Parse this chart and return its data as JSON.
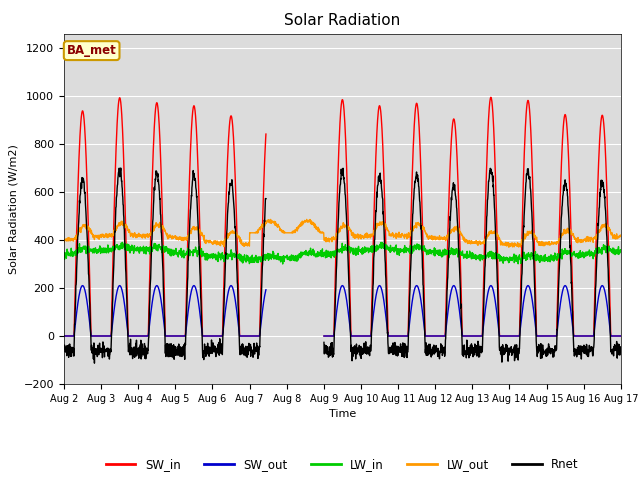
{
  "title": "Solar Radiation",
  "xlabel": "Time",
  "ylabel": "Solar Radiation (W/m2)",
  "ylim": [
    -200,
    1260
  ],
  "yticks": [
    -200,
    0,
    200,
    400,
    600,
    800,
    1000,
    1200
  ],
  "plot_bg_color": "#dcdcdc",
  "figure_color": "#ffffff",
  "annotation_label": "BA_met",
  "legend_entries": [
    "SW_in",
    "SW_out",
    "LW_in",
    "LW_out",
    "Rnet"
  ],
  "colors": {
    "SW_in": "#ff0000",
    "SW_out": "#0000cc",
    "LW_in": "#00cc00",
    "LW_out": "#ff9900",
    "Rnet": "#000000"
  },
  "n_days": 15,
  "start_day": 2
}
